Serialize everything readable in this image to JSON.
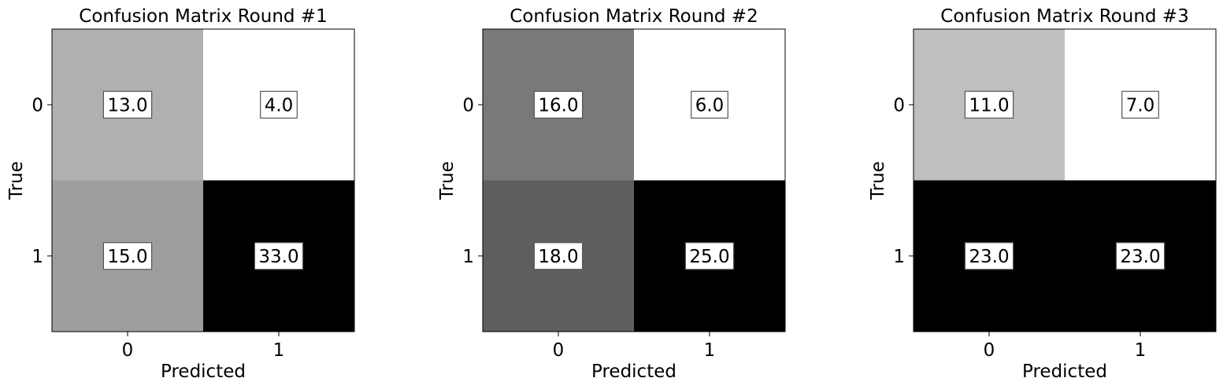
{
  "chart_data": [
    {
      "type": "heatmap",
      "title": "Confusion Matrix Round #1",
      "xlabel": "Predicted",
      "ylabel": "True",
      "x_categories": [
        "0",
        "1"
      ],
      "y_categories": [
        "0",
        "1"
      ],
      "values": [
        [
          13.0,
          4.0
        ],
        [
          15.0,
          33.0
        ]
      ],
      "value_labels": [
        [
          "13.0",
          "4.0"
        ],
        [
          "15.0",
          "33.0"
        ]
      ],
      "colormap": "gray_r",
      "grid": false
    },
    {
      "type": "heatmap",
      "title": "Confusion Matrix Round #2",
      "xlabel": "Predicted",
      "ylabel": "True",
      "x_categories": [
        "0",
        "1"
      ],
      "y_categories": [
        "0",
        "1"
      ],
      "values": [
        [
          16.0,
          6.0
        ],
        [
          18.0,
          25.0
        ]
      ],
      "value_labels": [
        [
          "16.0",
          "6.0"
        ],
        [
          "18.0",
          "25.0"
        ]
      ],
      "colormap": "gray_r",
      "grid": false
    },
    {
      "type": "heatmap",
      "title": "Confusion Matrix Round #3",
      "xlabel": "Predicted",
      "ylabel": "True",
      "x_categories": [
        "0",
        "1"
      ],
      "y_categories": [
        "0",
        "1"
      ],
      "values": [
        [
          11.0,
          7.0
        ],
        [
          23.0,
          23.0
        ]
      ],
      "value_labels": [
        [
          "11.0",
          "7.0"
        ],
        [
          "23.0",
          "23.0"
        ]
      ],
      "colormap": "gray_r",
      "grid": false
    }
  ]
}
